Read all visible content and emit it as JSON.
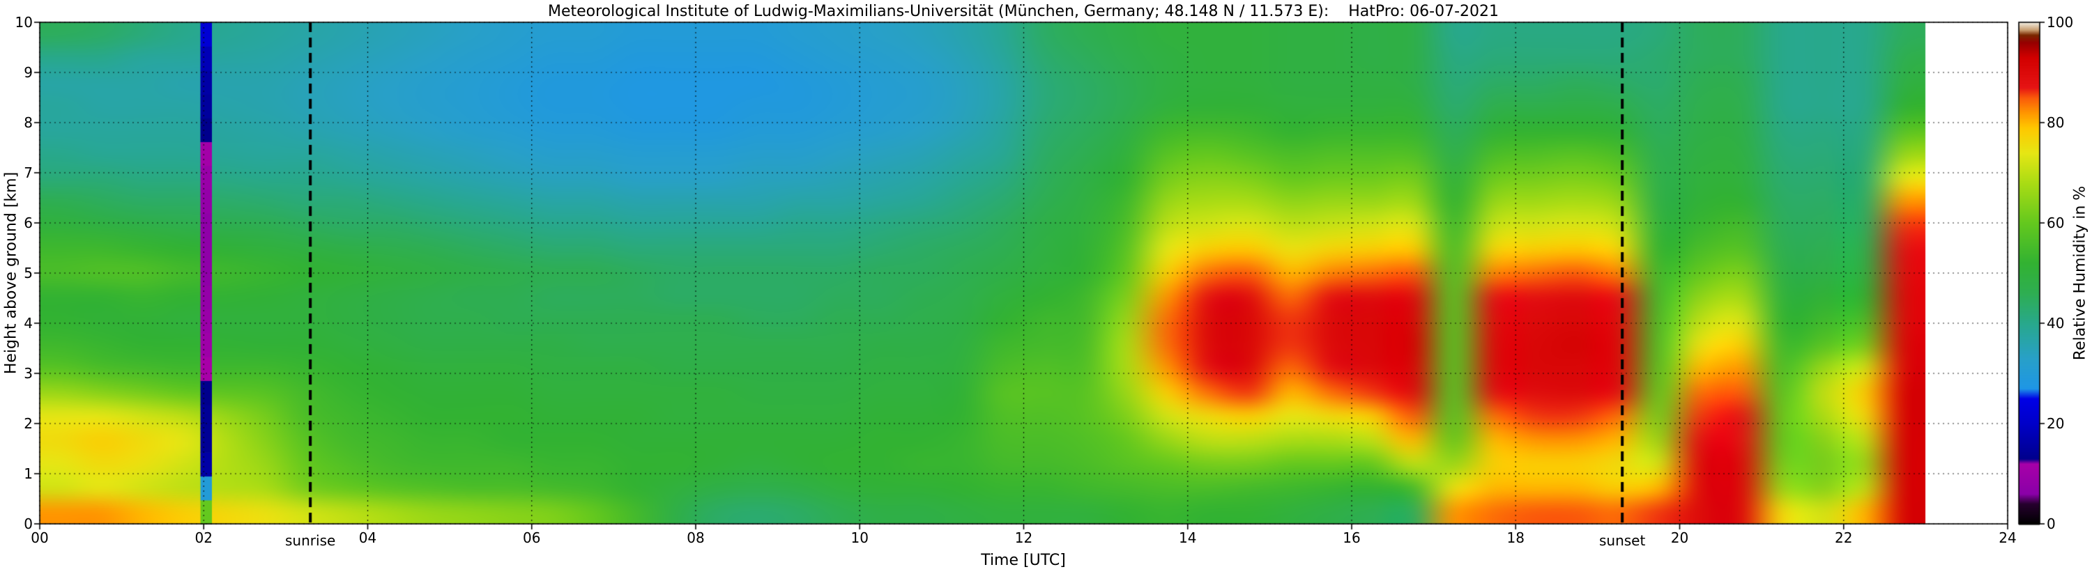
{
  "title": "Meteorological Institute of Ludwig-Maximilians-Universität (München, Germany; 48.148 N / 11.573 E):    HatPro: 06-07-2021",
  "axes": {
    "xlabel": "Time [UTC]",
    "ylabel": "Height above ground [km]",
    "x_tick_labels": [
      "00",
      "02",
      "04",
      "06",
      "08",
      "10",
      "12",
      "14",
      "16",
      "18",
      "20",
      "22",
      "24"
    ],
    "x_tick_values": [
      0,
      2,
      4,
      6,
      8,
      10,
      12,
      14,
      16,
      18,
      20,
      22,
      24
    ],
    "y_tick_labels": [
      "0",
      "1",
      "2",
      "3",
      "4",
      "5",
      "6",
      "7",
      "8",
      "9",
      "10"
    ],
    "y_tick_values": [
      0,
      1,
      2,
      3,
      4,
      5,
      6,
      7,
      8,
      9,
      10
    ],
    "xlim": [
      0,
      24
    ],
    "ylim": [
      0,
      10
    ],
    "grid": "dotted"
  },
  "colorbar": {
    "label": "Relative Humidity in %",
    "tick_labels": [
      "0",
      "20",
      "40",
      "60",
      "80",
      "100"
    ],
    "tick_values": [
      0,
      20,
      40,
      60,
      80,
      100
    ],
    "range": [
      0,
      100
    ]
  },
  "annotations": {
    "sunrise": {
      "label": "sunrise",
      "time_utc": 3.3
    },
    "sunset": {
      "label": "sunset",
      "time_utc": 19.3
    }
  },
  "chart_data": {
    "type": "heatmap",
    "quantity": "Relative Humidity in %",
    "x_name": "Time [UTC]",
    "y_name": "Height above ground [km]",
    "x_start": 0.0,
    "x_step": 0.5,
    "x_data_end": 23.0,
    "y_start": 0.0,
    "y_step": 0.5,
    "xlim": [
      0,
      24
    ],
    "ylim": [
      0,
      10
    ],
    "spike_column_index": 4,
    "spike_time": 2.03,
    "spike_width_hours": 0.14,
    "no_data_after": 23.0,
    "colormap_stops": [
      [
        0,
        "#000000"
      ],
      [
        4,
        "#26002e"
      ],
      [
        6,
        "#8a00a8"
      ],
      [
        12,
        "#a800a8"
      ],
      [
        13,
        "#00008c"
      ],
      [
        20,
        "#0000c8"
      ],
      [
        25,
        "#0000e6"
      ],
      [
        27,
        "#1e96e6"
      ],
      [
        33,
        "#28a0c8"
      ],
      [
        40,
        "#28a88c"
      ],
      [
        46,
        "#2eae52"
      ],
      [
        52,
        "#32b232"
      ],
      [
        60,
        "#64c81e"
      ],
      [
        68,
        "#aadc14"
      ],
      [
        74,
        "#e6e614"
      ],
      [
        79,
        "#ffc800"
      ],
      [
        82,
        "#ff9600"
      ],
      [
        85,
        "#fa5a0a"
      ],
      [
        87,
        "#e61414"
      ],
      [
        93,
        "#d20000"
      ],
      [
        96,
        "#960000"
      ],
      [
        97.5,
        "#7a2800"
      ],
      [
        98.5,
        "#c89c6e"
      ],
      [
        100,
        "#f0ece0"
      ]
    ],
    "values_note": "columns every 0.5h from 00:00 to 22:30 UTC; each column lists RH% at heights 0,0.5,...,10 km (bottom to top)",
    "values": [
      [
        82,
        72,
        74,
        76,
        74,
        66,
        58,
        54,
        52,
        52,
        56,
        54,
        50,
        46,
        42,
        40,
        38,
        38,
        37,
        40,
        45
      ],
      [
        82,
        74,
        76,
        78,
        74,
        64,
        56,
        53,
        51,
        52,
        57,
        54,
        49,
        45,
        42,
        39,
        38,
        37,
        37,
        40,
        44
      ],
      [
        80,
        72,
        75,
        76,
        72,
        62,
        55,
        52,
        51,
        53,
        57,
        53,
        48,
        44,
        41,
        39,
        38,
        37,
        37,
        38,
        42
      ],
      [
        78,
        70,
        72,
        74,
        70,
        60,
        54,
        52,
        50,
        52,
        55,
        52,
        47,
        44,
        41,
        39,
        38,
        37,
        36,
        38,
        40
      ],
      [
        60,
        30,
        16,
        14,
        14,
        13,
        12,
        10,
        9,
        8,
        7,
        7,
        7,
        8,
        9,
        11,
        13,
        15,
        16,
        18,
        22
      ],
      [
        75,
        68,
        66,
        64,
        62,
        58,
        54,
        51,
        50,
        51,
        53,
        50,
        46,
        43,
        40,
        38,
        37,
        36,
        36,
        37,
        38
      ],
      [
        72,
        62,
        60,
        58,
        56,
        55,
        53,
        51,
        50,
        50,
        52,
        49,
        45,
        42,
        40,
        38,
        36,
        35,
        35,
        36,
        37
      ],
      [
        70,
        60,
        57,
        55,
        54,
        53,
        52,
        50,
        49,
        49,
        51,
        48,
        44,
        42,
        39,
        37,
        35,
        34,
        34,
        35,
        36
      ],
      [
        68,
        58,
        55,
        54,
        53,
        52,
        51,
        49,
        48,
        48,
        50,
        47,
        44,
        41,
        38,
        36,
        34,
        33,
        33,
        34,
        35
      ],
      [
        66,
        57,
        54,
        53,
        52,
        51,
        50,
        48,
        47,
        47,
        49,
        46,
        43,
        40,
        37,
        35,
        33,
        32,
        32,
        33,
        34
      ],
      [
        65,
        56,
        54,
        53,
        52,
        51,
        50,
        48,
        47,
        46,
        48,
        45,
        42,
        39,
        36,
        34,
        32,
        31,
        31,
        32,
        33
      ],
      [
        64,
        56,
        54,
        52,
        52,
        51,
        50,
        48,
        46,
        46,
        47,
        44,
        41,
        38,
        35,
        33,
        31,
        30,
        30,
        31,
        32
      ],
      [
        63,
        55,
        53,
        52,
        51,
        50,
        49,
        48,
        46,
        45,
        46,
        43,
        40,
        37,
        34,
        32,
        30,
        29,
        29,
        30,
        31
      ],
      [
        60,
        54,
        53,
        52,
        51,
        50,
        49,
        47,
        46,
        45,
        46,
        43,
        40,
        37,
        34,
        32,
        30,
        29,
        29,
        30,
        31
      ],
      [
        55,
        52,
        52,
        51,
        51,
        50,
        49,
        47,
        46,
        45,
        45,
        42,
        39,
        36,
        33,
        31,
        29,
        28,
        28,
        29,
        30
      ],
      [
        48,
        50,
        52,
        51,
        50,
        50,
        48,
        47,
        46,
        44,
        44,
        42,
        39,
        36,
        33,
        31,
        29,
        28,
        28,
        29,
        30
      ],
      [
        44,
        48,
        51,
        51,
        50,
        50,
        48,
        47,
        46,
        44,
        44,
        42,
        39,
        36,
        33,
        31,
        29,
        28,
        28,
        29,
        30
      ],
      [
        43,
        47,
        50,
        51,
        50,
        49,
        48,
        47,
        45,
        44,
        44,
        42,
        39,
        36,
        34,
        32,
        30,
        29,
        28,
        29,
        30
      ],
      [
        44,
        48,
        51,
        51,
        50,
        49,
        48,
        47,
        45,
        44,
        44,
        42,
        40,
        37,
        34,
        32,
        30,
        29,
        29,
        30,
        31
      ],
      [
        46,
        50,
        52,
        51,
        50,
        49,
        48,
        47,
        46,
        45,
        44,
        42,
        40,
        37,
        35,
        33,
        31,
        30,
        30,
        31,
        32
      ],
      [
        48,
        51,
        52,
        52,
        51,
        50,
        49,
        48,
        46,
        45,
        45,
        43,
        41,
        38,
        36,
        34,
        32,
        31,
        31,
        32,
        33
      ],
      [
        48,
        51,
        53,
        52,
        51,
        50,
        49,
        48,
        47,
        46,
        45,
        44,
        42,
        39,
        37,
        35,
        33,
        32,
        32,
        33,
        34
      ],
      [
        49,
        52,
        53,
        53,
        52,
        51,
        50,
        49,
        48,
        47,
        46,
        45,
        43,
        41,
        39,
        37,
        35,
        34,
        34,
        35,
        36
      ],
      [
        50,
        53,
        55,
        56,
        57,
        58,
        56,
        54,
        52,
        50,
        48,
        46,
        45,
        43,
        41,
        39,
        38,
        37,
        37,
        38,
        39
      ],
      [
        50,
        53,
        55,
        56,
        57,
        58,
        57,
        55,
        54,
        52,
        50,
        49,
        48,
        46,
        45,
        44,
        43,
        42,
        42,
        43,
        44
      ],
      [
        50,
        54,
        56,
        57,
        58,
        58,
        57,
        56,
        55,
        54,
        52,
        51,
        50,
        49,
        48,
        46,
        45,
        44,
        44,
        45,
        46
      ],
      [
        52,
        55,
        58,
        60,
        63,
        66,
        68,
        68,
        66,
        63,
        60,
        58,
        56,
        54,
        52,
        50,
        48,
        46,
        46,
        47,
        48
      ],
      [
        53,
        56,
        60,
        66,
        72,
        78,
        82,
        84,
        84,
        82,
        78,
        74,
        70,
        66,
        62,
        58,
        54,
        50,
        49,
        49,
        50
      ],
      [
        52,
        56,
        62,
        70,
        76,
        84,
        88,
        90,
        90,
        88,
        84,
        78,
        72,
        68,
        64,
        60,
        55,
        51,
        50,
        50,
        50
      ],
      [
        52,
        55,
        62,
        70,
        78,
        86,
        90,
        91,
        91,
        89,
        85,
        79,
        73,
        68,
        63,
        58,
        54,
        51,
        50,
        50,
        50
      ],
      [
        50,
        54,
        60,
        68,
        74,
        80,
        84,
        86,
        86,
        84,
        80,
        75,
        70,
        65,
        60,
        56,
        52,
        50,
        49,
        49,
        49
      ],
      [
        48,
        53,
        60,
        68,
        76,
        84,
        88,
        90,
        90,
        88,
        83,
        77,
        71,
        66,
        61,
        57,
        53,
        50,
        49,
        49,
        49
      ],
      [
        46,
        52,
        60,
        70,
        78,
        86,
        90,
        91,
        91,
        89,
        84,
        78,
        72,
        66,
        61,
        57,
        53,
        50,
        49,
        48,
        48
      ],
      [
        45,
        55,
        70,
        80,
        85,
        89,
        91,
        92,
        91,
        89,
        85,
        79,
        73,
        67,
        62,
        57,
        53,
        50,
        48,
        48,
        48
      ],
      [
        82,
        75,
        66,
        60,
        58,
        58,
        58,
        58,
        58,
        58,
        57,
        56,
        54,
        52,
        50,
        47,
        45,
        43,
        42,
        41,
        40
      ],
      [
        84,
        80,
        78,
        80,
        84,
        88,
        90,
        90,
        89,
        87,
        83,
        77,
        71,
        66,
        61,
        56,
        51,
        47,
        44,
        42,
        41
      ],
      [
        85,
        80,
        78,
        82,
        86,
        89,
        91,
        91,
        90,
        88,
        84,
        78,
        72,
        67,
        62,
        57,
        52,
        47,
        44,
        42,
        41
      ],
      [
        85,
        80,
        78,
        82,
        86,
        90,
        91,
        92,
        91,
        89,
        85,
        79,
        73,
        68,
        63,
        58,
        52,
        48,
        45,
        42,
        41
      ],
      [
        84,
        78,
        76,
        80,
        84,
        88,
        90,
        90,
        89,
        87,
        83,
        77,
        71,
        66,
        61,
        56,
        51,
        47,
        44,
        42,
        41
      ],
      [
        86,
        80,
        72,
        66,
        62,
        60,
        58,
        57,
        56,
        55,
        54,
        52,
        50,
        48,
        47,
        46,
        45,
        44,
        43,
        43,
        42
      ],
      [
        90,
        90,
        90,
        88,
        86,
        84,
        80,
        75,
        70,
        65,
        60,
        56,
        53,
        51,
        50,
        49,
        48,
        47,
        46,
        45,
        45
      ],
      [
        90,
        90,
        90,
        88,
        87,
        85,
        82,
        78,
        73,
        68,
        63,
        58,
        55,
        52,
        50,
        49,
        48,
        47,
        46,
        45,
        45
      ],
      [
        76,
        66,
        62,
        60,
        60,
        58,
        56,
        54,
        52,
        50,
        48,
        46,
        45,
        44,
        43,
        42,
        41,
        40,
        40,
        40,
        40
      ],
      [
        72,
        64,
        62,
        64,
        68,
        70,
        66,
        58,
        54,
        51,
        48,
        46,
        45,
        44,
        43,
        42,
        41,
        40,
        40,
        40,
        40
      ],
      [
        80,
        70,
        66,
        70,
        76,
        78,
        72,
        62,
        56,
        52,
        49,
        47,
        45,
        44,
        43,
        42,
        41,
        40,
        40,
        40,
        40
      ],
      [
        92,
        92,
        92,
        92,
        92,
        92,
        91,
        91,
        90,
        90,
        89,
        88,
        86,
        82,
        74,
        66,
        58,
        52,
        49,
        47,
        45
      ]
    ]
  }
}
